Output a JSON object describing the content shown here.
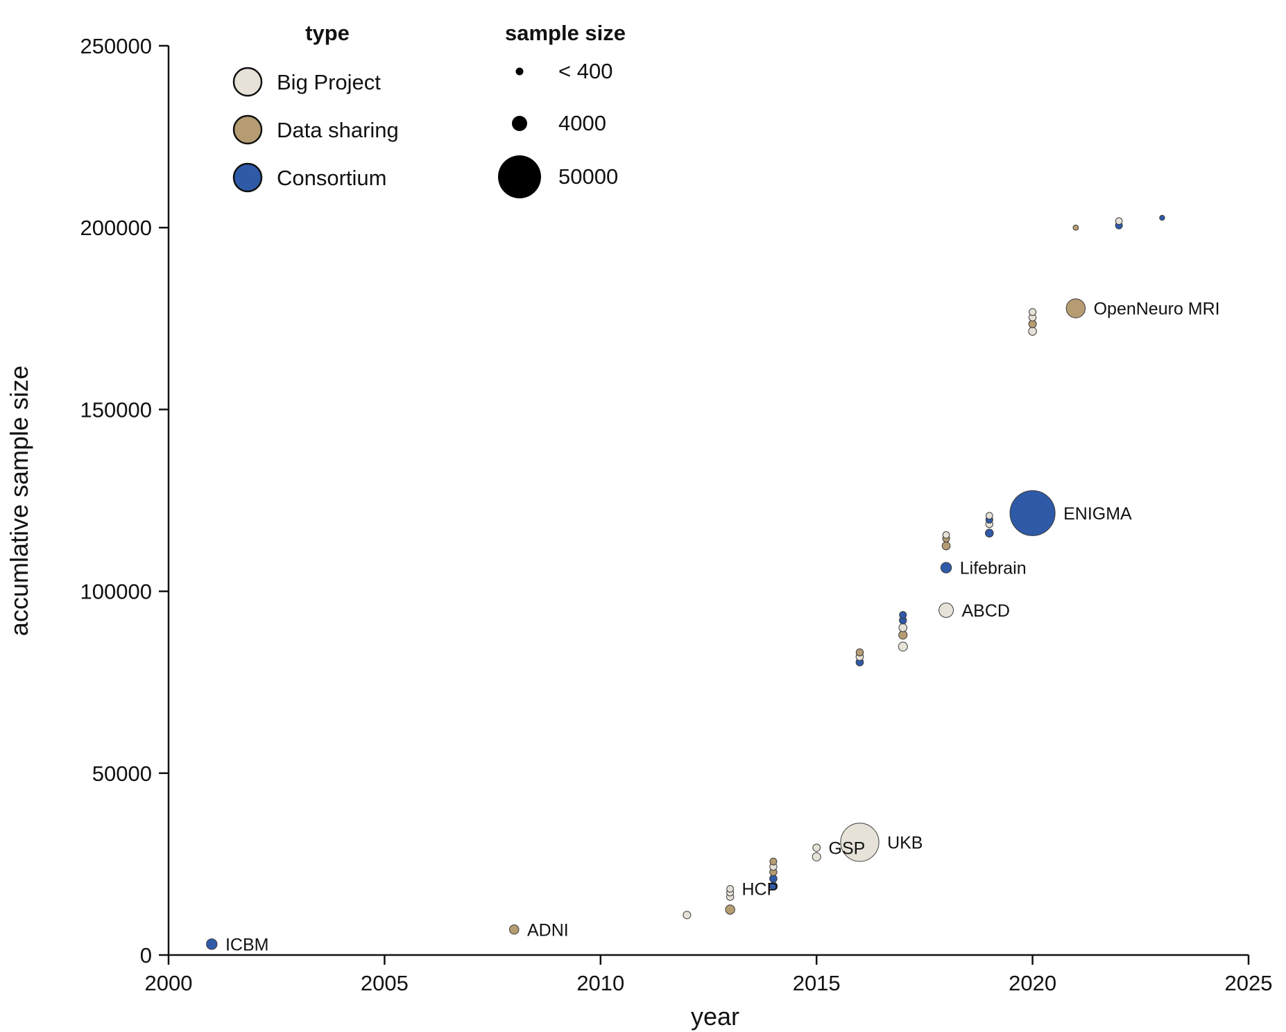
{
  "chart_data": {
    "type": "scatter",
    "title": "",
    "xlabel": "year",
    "ylabel": "accumlative sample size",
    "xlim": [
      2000,
      2025
    ],
    "ylim": [
      0,
      250000
    ],
    "xticks": [
      2000,
      2005,
      2010,
      2015,
      2020,
      2025
    ],
    "yticks": [
      0,
      50000,
      100000,
      150000,
      200000,
      250000
    ],
    "colors": {
      "Big Project": "#e6e2d8",
      "Data sharing": "#b59c72",
      "Consortium": "#2f5aa8"
    },
    "legend_type": {
      "title": "type",
      "entries": [
        "Big Project",
        "Data sharing",
        "Consortium"
      ]
    },
    "legend_size": {
      "title": "sample size",
      "entries": [
        {
          "label": "< 400",
          "value": 400
        },
        {
          "label": "4000",
          "value": 4000
        },
        {
          "label": "50000",
          "value": 50000
        }
      ]
    },
    "points": [
      {
        "year": 2001,
        "y": 3000,
        "size": 1500,
        "type": "Consortium",
        "label": "ICBM"
      },
      {
        "year": 2008,
        "y": 7000,
        "size": 1000,
        "type": "Data sharing",
        "label": "ADNI"
      },
      {
        "year": 2012,
        "y": 11000,
        "size": 500,
        "type": "Big Project"
      },
      {
        "year": 2013,
        "y": 12500,
        "size": 1000,
        "type": "Data sharing"
      },
      {
        "year": 2013,
        "y": 16000,
        "size": 400,
        "type": "Big Project"
      },
      {
        "year": 2013,
        "y": 17200,
        "size": 350,
        "type": "Big Project"
      },
      {
        "year": 2013,
        "y": 18200,
        "size": 300,
        "type": "Big Project",
        "label": "HCP"
      },
      {
        "year": 2014,
        "y": 19000,
        "size": 500,
        "type": "Consortium"
      },
      {
        "year": 2014,
        "y": 21000,
        "size": 450,
        "type": "Consortium"
      },
      {
        "year": 2014,
        "y": 22800,
        "size": 400,
        "type": "Data sharing"
      },
      {
        "year": 2014,
        "y": 24300,
        "size": 400,
        "type": "Big Project"
      },
      {
        "year": 2014,
        "y": 25700,
        "size": 350,
        "type": "Data sharing"
      },
      {
        "year": 2015,
        "y": 27000,
        "size": 700,
        "type": "Big Project"
      },
      {
        "year": 2015,
        "y": 29500,
        "size": 450,
        "type": "Big Project",
        "label": "GSP"
      },
      {
        "year": 2016,
        "y": 31000,
        "size": 35000,
        "type": "Big Project",
        "label": "UKB"
      },
      {
        "year": 2016,
        "y": 80500,
        "size": 450,
        "type": "Consortium"
      },
      {
        "year": 2016,
        "y": 82000,
        "size": 450,
        "type": "Big Project"
      },
      {
        "year": 2016,
        "y": 83200,
        "size": 400,
        "type": "Data sharing"
      },
      {
        "year": 2017,
        "y": 84800,
        "size": 900,
        "type": "Big Project"
      },
      {
        "year": 2017,
        "y": 88000,
        "size": 700,
        "type": "Data sharing"
      },
      {
        "year": 2017,
        "y": 90000,
        "size": 600,
        "type": "Big Project"
      },
      {
        "year": 2017,
        "y": 92000,
        "size": 400,
        "type": "Consortium"
      },
      {
        "year": 2017,
        "y": 93500,
        "size": 350,
        "type": "Consortium"
      },
      {
        "year": 2018,
        "y": 94800,
        "size": 3500,
        "type": "Big Project",
        "label": "ABCD"
      },
      {
        "year": 2018,
        "y": 106500,
        "size": 1500,
        "type": "Consortium",
        "label": "Lifebrain"
      },
      {
        "year": 2018,
        "y": 112500,
        "size": 600,
        "type": "Data sharing"
      },
      {
        "year": 2018,
        "y": 114500,
        "size": 350,
        "type": "Data sharing"
      },
      {
        "year": 2018,
        "y": 115500,
        "size": 300,
        "type": "Big Project"
      },
      {
        "year": 2019,
        "y": 116000,
        "size": 600,
        "type": "Consortium"
      },
      {
        "year": 2019,
        "y": 118500,
        "size": 400,
        "type": "Big Project"
      },
      {
        "year": 2019,
        "y": 119700,
        "size": 350,
        "type": "Consortium"
      },
      {
        "year": 2019,
        "y": 120800,
        "size": 300,
        "type": "Big Project"
      },
      {
        "year": 2020,
        "y": 121500,
        "size": 50000,
        "type": "Consortium",
        "label": "ENIGMA"
      },
      {
        "year": 2020,
        "y": 171500,
        "size": 600,
        "type": "Big Project"
      },
      {
        "year": 2020,
        "y": 173500,
        "size": 500,
        "type": "Data sharing"
      },
      {
        "year": 2020,
        "y": 175300,
        "size": 400,
        "type": "Big Project"
      },
      {
        "year": 2020,
        "y": 176800,
        "size": 350,
        "type": "Big Project"
      },
      {
        "year": 2021,
        "y": 177800,
        "size": 7000,
        "type": "Data sharing",
        "label": "OpenNeuro MRI"
      },
      {
        "year": 2021,
        "y": 200000,
        "size": 100,
        "type": "Data sharing"
      },
      {
        "year": 2022,
        "y": 200600,
        "size": 350,
        "type": "Consortium"
      },
      {
        "year": 2022,
        "y": 201800,
        "size": 300,
        "type": "Big Project"
      },
      {
        "year": 2023,
        "y": 202700,
        "size": 80,
        "type": "Consortium"
      }
    ]
  }
}
